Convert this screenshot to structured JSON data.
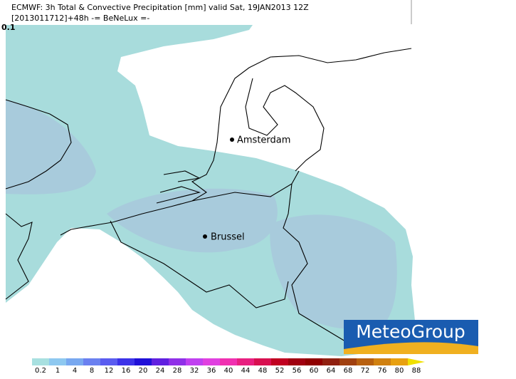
{
  "header": {
    "line1": "ECMWF: 3h Total & Convective Precipitation [mm] valid Sat, 19JAN2013 12Z",
    "line2": "[2013011712]+48h -= BeNeLux =-"
  },
  "map": {
    "corner_label": "0.1",
    "cities": [
      {
        "name": "Amsterdam"
      },
      {
        "name": "Brussel"
      }
    ]
  },
  "logo": {
    "text": "MeteoGroup"
  },
  "colorbar": {
    "ticks": [
      0.2,
      1,
      4,
      8,
      12,
      16,
      20,
      24,
      28,
      32,
      36,
      40,
      44,
      48,
      52,
      56,
      60,
      64,
      68,
      72,
      76,
      80,
      88
    ],
    "colors": [
      "#a8e0e0",
      "#8ec8f0",
      "#78a8f0",
      "#6a80f0",
      "#5a5cf0",
      "#3c32e8",
      "#2010d8",
      "#6020e0",
      "#9030e8",
      "#c040f0",
      "#e040e0",
      "#f030b0",
      "#e82080",
      "#d81050",
      "#c00020",
      "#a00010",
      "#900000",
      "#902010",
      "#a04010",
      "#b86010",
      "#d08010",
      "#e8a010",
      "#f0e000"
    ]
  }
}
